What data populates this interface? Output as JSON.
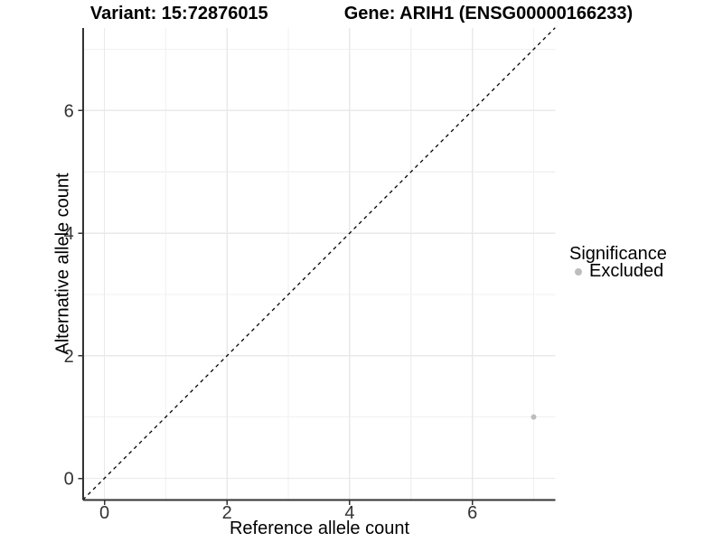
{
  "header": {
    "variant_title": "Variant: 15:72876015",
    "gene_title": "Gene: ARIH1 (ENSG00000166233)"
  },
  "axes": {
    "x_label": "Reference allele count",
    "y_label": "Alternative allele count"
  },
  "legend": {
    "title": "Significance",
    "items": [
      {
        "label": "Excluded",
        "color": "#bdbdbd"
      }
    ]
  },
  "colors": {
    "background": "#ffffff",
    "grid_major": "#e9e9e9",
    "grid_minor": "#f1f1f1",
    "axis_line": "#333333",
    "tick_mark": "#333333",
    "tick_label": "#333333",
    "reference_line": "#000000",
    "point": "#bdbdbd"
  },
  "chart_data": {
    "type": "scatter",
    "title": "Variant: 15:72876015    Gene: ARIH1 (ENSG00000166233)",
    "xlabel": "Reference allele count",
    "ylabel": "Alternative allele count",
    "xlim": [
      -0.35,
      7.35
    ],
    "ylim": [
      -0.35,
      7.35
    ],
    "x_ticks": [
      0,
      2,
      4,
      6
    ],
    "y_ticks": [
      0,
      2,
      4,
      6
    ],
    "x_minor_gridlines": [
      1,
      3,
      5,
      7
    ],
    "y_minor_gridlines": [
      1,
      3,
      5,
      7
    ],
    "grid": true,
    "legend_position": "right",
    "series": [
      {
        "name": "Excluded",
        "color": "#bdbdbd",
        "point_radius": 3,
        "points": [
          {
            "x": 7,
            "y": 1
          }
        ]
      }
    ],
    "reference_line": {
      "style": "dashed",
      "slope": 1,
      "intercept": 0,
      "color": "#000000"
    }
  }
}
